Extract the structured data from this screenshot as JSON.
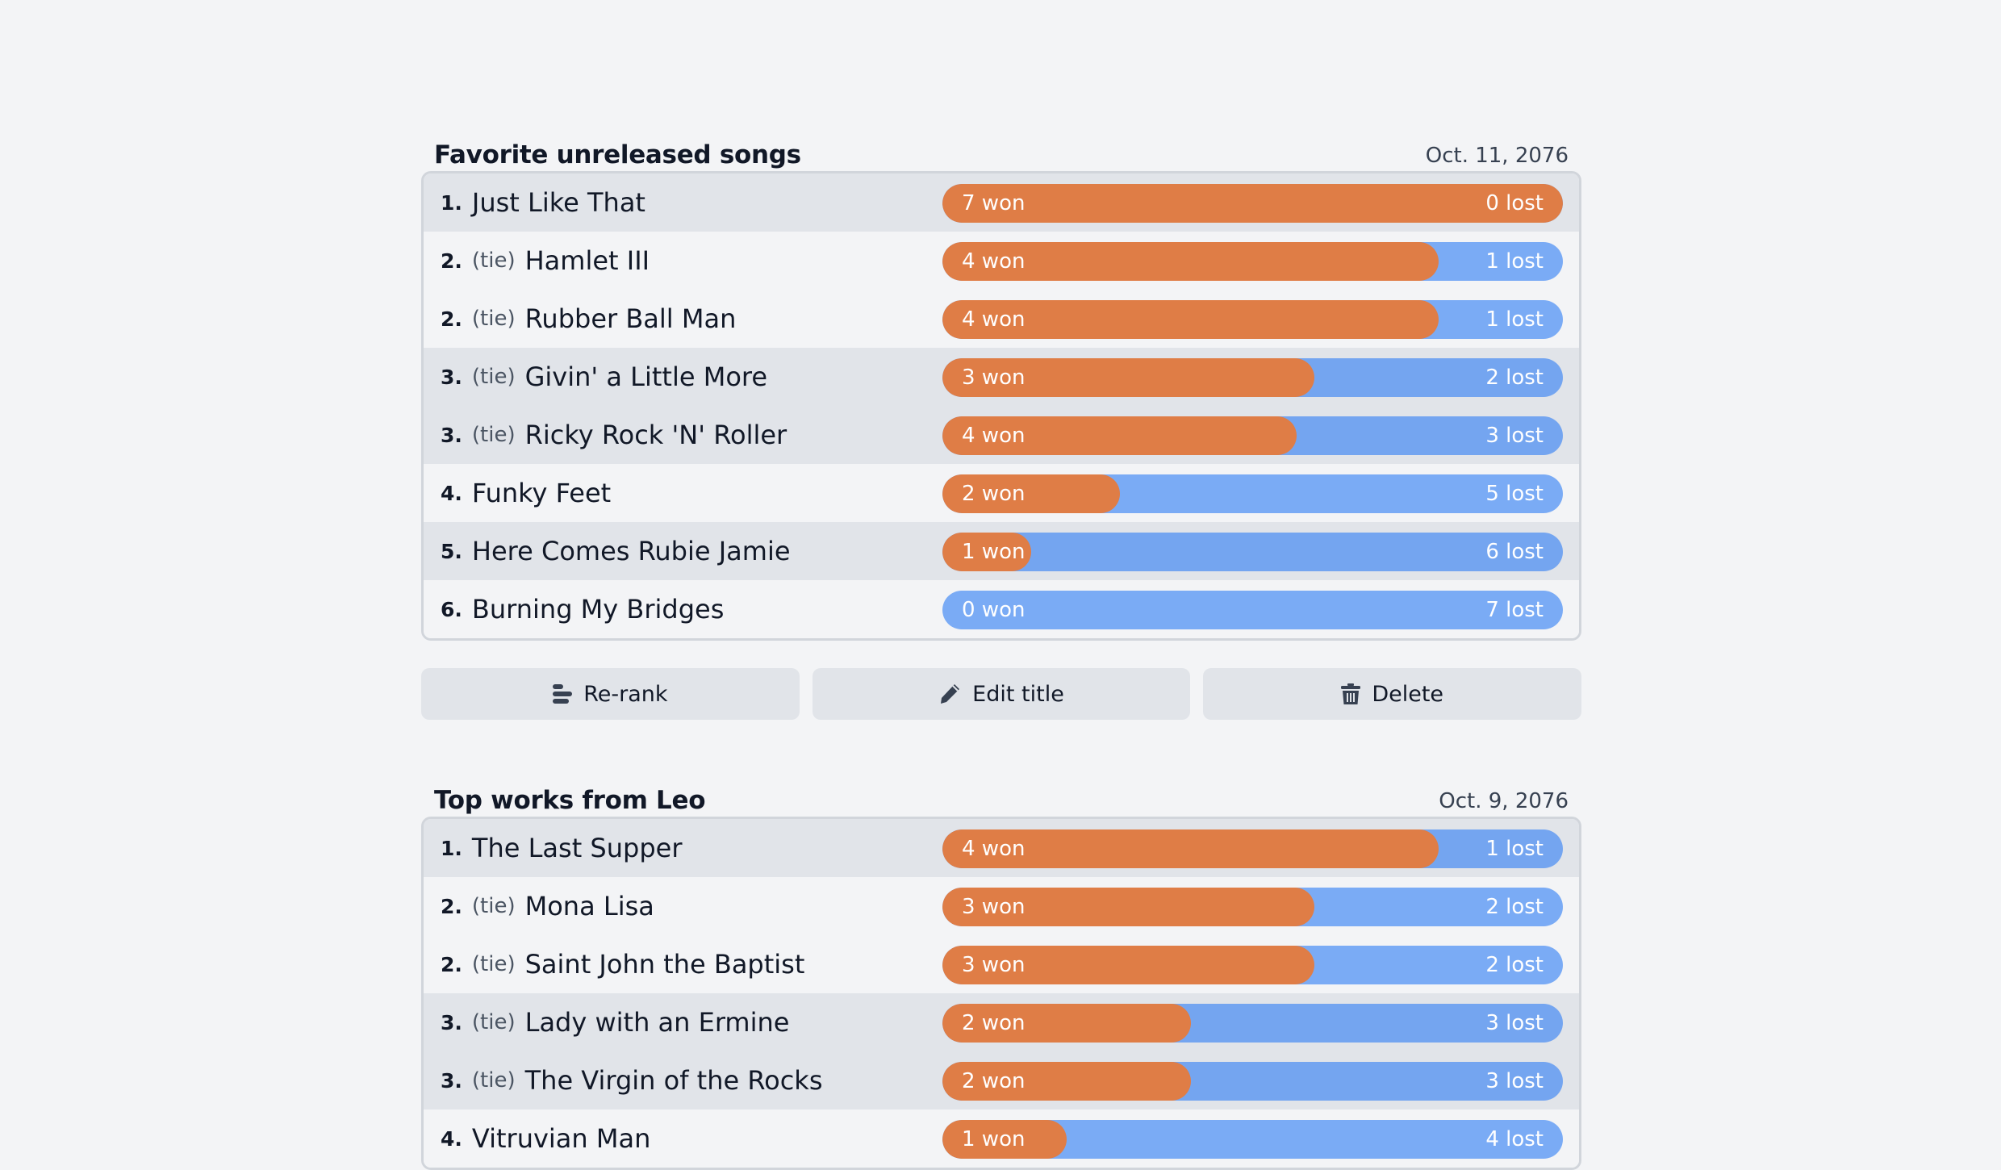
{
  "colors": {
    "won": "#df7d46",
    "lost": "#7aabf5",
    "row_shade": "#e1e4e9",
    "row_light": "#f3f4f6",
    "page_bg": "#f3f4f6"
  },
  "lists": [
    {
      "title": "Favorite unreleased songs",
      "date": "Oct. 11, 2076",
      "rows": [
        {
          "rank": "1.",
          "tie": "",
          "name": "Just Like That",
          "won": 7,
          "lost": 0,
          "won_label": "7 won",
          "lost_label": "0 lost"
        },
        {
          "rank": "2.",
          "tie": "(tie)",
          "name": "Hamlet III",
          "won": 4,
          "lost": 1,
          "won_label": "4 won",
          "lost_label": "1 lost"
        },
        {
          "rank": "2.",
          "tie": "(tie)",
          "name": "Rubber Ball Man",
          "won": 4,
          "lost": 1,
          "won_label": "4 won",
          "lost_label": "1 lost"
        },
        {
          "rank": "3.",
          "tie": "(tie)",
          "name": "Givin' a Little More",
          "won": 3,
          "lost": 2,
          "won_label": "3 won",
          "lost_label": "2 lost"
        },
        {
          "rank": "3.",
          "tie": "(tie)",
          "name": "Ricky Rock 'N' Roller",
          "won": 4,
          "lost": 3,
          "won_label": "4 won",
          "lost_label": "3 lost"
        },
        {
          "rank": "4.",
          "tie": "",
          "name": "Funky Feet",
          "won": 2,
          "lost": 5,
          "won_label": "2 won",
          "lost_label": "5 lost"
        },
        {
          "rank": "5.",
          "tie": "",
          "name": "Here Comes Rubie Jamie",
          "won": 1,
          "lost": 6,
          "won_label": "1 won",
          "lost_label": "6 lost"
        },
        {
          "rank": "6.",
          "tie": "",
          "name": "Burning My Bridges",
          "won": 0,
          "lost": 7,
          "won_label": "0 won",
          "lost_label": "7 lost"
        }
      ],
      "actions": {
        "rerank": "Re-rank",
        "edit_title": "Edit title",
        "delete": "Delete"
      }
    },
    {
      "title": "Top works from Leo",
      "date": "Oct. 9, 2076",
      "rows": [
        {
          "rank": "1.",
          "tie": "",
          "name": "The Last Supper",
          "won": 4,
          "lost": 1,
          "won_label": "4 won",
          "lost_label": "1 lost"
        },
        {
          "rank": "2.",
          "tie": "(tie)",
          "name": "Mona Lisa",
          "won": 3,
          "lost": 2,
          "won_label": "3 won",
          "lost_label": "2 lost"
        },
        {
          "rank": "2.",
          "tie": "(tie)",
          "name": "Saint John the Baptist",
          "won": 3,
          "lost": 2,
          "won_label": "3 won",
          "lost_label": "2 lost"
        },
        {
          "rank": "3.",
          "tie": "(tie)",
          "name": "Lady with an Ermine",
          "won": 2,
          "lost": 3,
          "won_label": "2 won",
          "lost_label": "3 lost"
        },
        {
          "rank": "3.",
          "tie": "(tie)",
          "name": "The Virgin of the Rocks",
          "won": 2,
          "lost": 3,
          "won_label": "2 won",
          "lost_label": "3 lost"
        },
        {
          "rank": "4.",
          "tie": "",
          "name": "Vitruvian Man",
          "won": 1,
          "lost": 4,
          "won_label": "1 won",
          "lost_label": "4 lost"
        }
      ]
    }
  ]
}
